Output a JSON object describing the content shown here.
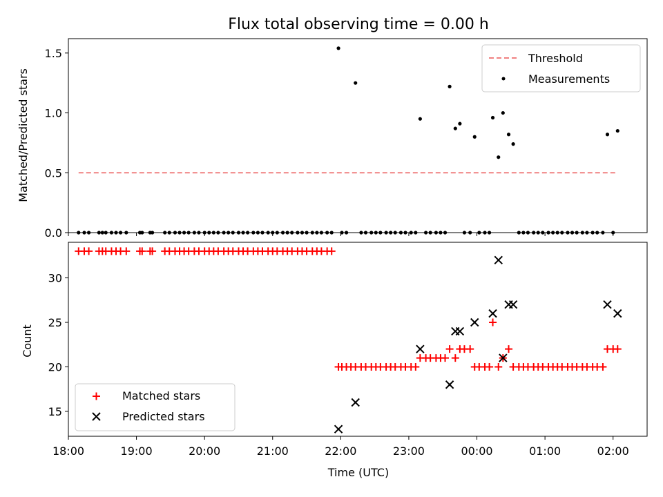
{
  "chart_data": [
    {
      "type": "scatter",
      "title": "Flux total observing time = 0.00 h",
      "xlabel": "",
      "ylabel": "Matched/Predicted stars",
      "xlim": [
        "18:00",
        "02:30"
      ],
      "ylim": [
        0,
        1.62
      ],
      "yticks": [
        0.0,
        0.5,
        1.0,
        1.5
      ],
      "ytick_labels": [
        "0.0",
        "0.5",
        "1.0",
        "1.5"
      ],
      "legend": {
        "location": "top-right",
        "entries": [
          "Threshold",
          "Measurements"
        ]
      },
      "series": [
        {
          "name": "Threshold",
          "kind": "dashed-line",
          "color": "#f08080",
          "points": [
            [
              "18:09",
              0.5
            ],
            [
              "02:02",
              0.5
            ]
          ]
        },
        {
          "name": "Measurements",
          "kind": "dot",
          "color": "#000000",
          "points": [
            [
              "18:09",
              0
            ],
            [
              "18:14",
              0
            ],
            [
              "18:18",
              0
            ],
            [
              "18:27",
              0
            ],
            [
              "18:30",
              0
            ],
            [
              "18:33",
              0
            ],
            [
              "18:38",
              0
            ],
            [
              "18:42",
              0
            ],
            [
              "18:46",
              0
            ],
            [
              "18:51",
              0
            ],
            [
              "19:03",
              0
            ],
            [
              "19:05",
              0
            ],
            [
              "19:12",
              0
            ],
            [
              "19:14",
              0
            ],
            [
              "19:25",
              0
            ],
            [
              "19:29",
              0
            ],
            [
              "19:34",
              0
            ],
            [
              "19:38",
              0
            ],
            [
              "19:42",
              0
            ],
            [
              "19:46",
              0
            ],
            [
              "19:51",
              0
            ],
            [
              "19:55",
              0
            ],
            [
              "20:00",
              0
            ],
            [
              "20:04",
              0
            ],
            [
              "20:08",
              0
            ],
            [
              "20:12",
              0
            ],
            [
              "20:17",
              0
            ],
            [
              "20:21",
              0
            ],
            [
              "20:25",
              0
            ],
            [
              "20:30",
              0
            ],
            [
              "20:34",
              0
            ],
            [
              "20:38",
              0
            ],
            [
              "20:43",
              0
            ],
            [
              "20:47",
              0
            ],
            [
              "20:51",
              0
            ],
            [
              "20:56",
              0
            ],
            [
              "21:00",
              0
            ],
            [
              "21:04",
              0
            ],
            [
              "21:09",
              0
            ],
            [
              "21:13",
              0
            ],
            [
              "21:17",
              0
            ],
            [
              "21:22",
              0
            ],
            [
              "21:26",
              0
            ],
            [
              "21:30",
              0
            ],
            [
              "21:35",
              0
            ],
            [
              "21:39",
              0
            ],
            [
              "21:43",
              0
            ],
            [
              "21:48",
              0
            ],
            [
              "21:52",
              0
            ],
            [
              "21:58",
              1.54
            ],
            [
              "22:01",
              0
            ],
            [
              "22:05",
              0
            ],
            [
              "22:13",
              1.25
            ],
            [
              "22:18",
              0
            ],
            [
              "22:22",
              0
            ],
            [
              "22:27",
              0
            ],
            [
              "22:31",
              0
            ],
            [
              "22:35",
              0
            ],
            [
              "22:40",
              0
            ],
            [
              "22:44",
              0
            ],
            [
              "22:48",
              0
            ],
            [
              "22:53",
              0
            ],
            [
              "22:57",
              0
            ],
            [
              "23:02",
              0
            ],
            [
              "23:06",
              0
            ],
            [
              "23:10",
              0.95
            ],
            [
              "23:15",
              0
            ],
            [
              "23:19",
              0
            ],
            [
              "23:24",
              0
            ],
            [
              "23:28",
              0
            ],
            [
              "23:32",
              0
            ],
            [
              "23:36",
              1.22
            ],
            [
              "23:41",
              0.87
            ],
            [
              "23:45",
              0.91
            ],
            [
              "23:49",
              0
            ],
            [
              "23:54",
              0
            ],
            [
              "23:58",
              0.8
            ],
            [
              "00:02",
              0
            ],
            [
              "00:07",
              0
            ],
            [
              "00:11",
              0
            ],
            [
              "00:14",
              0.96
            ],
            [
              "00:19",
              0.63
            ],
            [
              "00:23",
              1.0
            ],
            [
              "00:28",
              0.82
            ],
            [
              "00:32",
              0.74
            ],
            [
              "00:37",
              0
            ],
            [
              "00:41",
              0
            ],
            [
              "00:45",
              0
            ],
            [
              "00:50",
              0
            ],
            [
              "00:54",
              0
            ],
            [
              "00:58",
              0
            ],
            [
              "01:03",
              0
            ],
            [
              "01:07",
              0
            ],
            [
              "01:11",
              0
            ],
            [
              "01:15",
              0
            ],
            [
              "01:20",
              0
            ],
            [
              "01:24",
              0
            ],
            [
              "01:28",
              0
            ],
            [
              "01:33",
              0
            ],
            [
              "01:37",
              0
            ],
            [
              "01:42",
              0
            ],
            [
              "01:46",
              0
            ],
            [
              "01:51",
              0
            ],
            [
              "01:55",
              0.82
            ],
            [
              "02:00",
              0
            ],
            [
              "02:04",
              0.85
            ]
          ]
        }
      ]
    },
    {
      "type": "scatter",
      "title": "",
      "xlabel": "Time (UTC)",
      "ylabel": "Count",
      "xlim": [
        "18:00",
        "02:30"
      ],
      "ylim": [
        12.2,
        34.0
      ],
      "yticks": [
        15,
        20,
        25,
        30
      ],
      "ytick_labels": [
        "15",
        "20",
        "25",
        "30"
      ],
      "xticks": [
        "18:00",
        "19:00",
        "20:00",
        "21:00",
        "22:00",
        "23:00",
        "00:00",
        "01:00",
        "02:00"
      ],
      "legend": {
        "location": "bottom-left",
        "entries": [
          "Matched stars",
          "Predicted stars"
        ]
      },
      "series": [
        {
          "name": "Matched stars",
          "marker": "+",
          "color": "#ff0000",
          "points": [
            [
              "18:09",
              33
            ],
            [
              "18:14",
              33
            ],
            [
              "18:18",
              33
            ],
            [
              "18:27",
              33
            ],
            [
              "18:30",
              33
            ],
            [
              "18:33",
              33
            ],
            [
              "18:38",
              33
            ],
            [
              "18:42",
              33
            ],
            [
              "18:46",
              33
            ],
            [
              "18:51",
              33
            ],
            [
              "19:03",
              33
            ],
            [
              "19:05",
              33
            ],
            [
              "19:12",
              33
            ],
            [
              "19:14",
              33
            ],
            [
              "19:25",
              33
            ],
            [
              "19:29",
              33
            ],
            [
              "19:34",
              33
            ],
            [
              "19:38",
              33
            ],
            [
              "19:42",
              33
            ],
            [
              "19:46",
              33
            ],
            [
              "19:51",
              33
            ],
            [
              "19:55",
              33
            ],
            [
              "20:00",
              33
            ],
            [
              "20:04",
              33
            ],
            [
              "20:08",
              33
            ],
            [
              "20:12",
              33
            ],
            [
              "20:17",
              33
            ],
            [
              "20:21",
              33
            ],
            [
              "20:25",
              33
            ],
            [
              "20:30",
              33
            ],
            [
              "20:34",
              33
            ],
            [
              "20:38",
              33
            ],
            [
              "20:43",
              33
            ],
            [
              "20:47",
              33
            ],
            [
              "20:51",
              33
            ],
            [
              "20:56",
              33
            ],
            [
              "21:00",
              33
            ],
            [
              "21:04",
              33
            ],
            [
              "21:09",
              33
            ],
            [
              "21:13",
              33
            ],
            [
              "21:17",
              33
            ],
            [
              "21:22",
              33
            ],
            [
              "21:26",
              33
            ],
            [
              "21:30",
              33
            ],
            [
              "21:35",
              33
            ],
            [
              "21:39",
              33
            ],
            [
              "21:43",
              33
            ],
            [
              "21:48",
              33
            ],
            [
              "21:52",
              33
            ],
            [
              "21:58",
              20
            ],
            [
              "22:01",
              20
            ],
            [
              "22:05",
              20
            ],
            [
              "22:09",
              20
            ],
            [
              "22:13",
              20
            ],
            [
              "22:18",
              20
            ],
            [
              "22:22",
              20
            ],
            [
              "22:27",
              20
            ],
            [
              "22:31",
              20
            ],
            [
              "22:35",
              20
            ],
            [
              "22:40",
              20
            ],
            [
              "22:44",
              20
            ],
            [
              "22:48",
              20
            ],
            [
              "22:53",
              20
            ],
            [
              "22:57",
              20
            ],
            [
              "23:02",
              20
            ],
            [
              "23:06",
              20
            ],
            [
              "23:10",
              21
            ],
            [
              "23:15",
              21
            ],
            [
              "23:19",
              21
            ],
            [
              "23:24",
              21
            ],
            [
              "23:28",
              21
            ],
            [
              "23:32",
              21
            ],
            [
              "23:36",
              22
            ],
            [
              "23:41",
              21
            ],
            [
              "23:45",
              22
            ],
            [
              "23:49",
              22
            ],
            [
              "23:54",
              22
            ],
            [
              "23:58",
              20
            ],
            [
              "00:02",
              20
            ],
            [
              "00:07",
              20
            ],
            [
              "00:11",
              20
            ],
            [
              "00:14",
              25
            ],
            [
              "00:19",
              20
            ],
            [
              "00:23",
              21
            ],
            [
              "00:28",
              22
            ],
            [
              "00:32",
              20
            ],
            [
              "00:37",
              20
            ],
            [
              "00:41",
              20
            ],
            [
              "00:45",
              20
            ],
            [
              "00:50",
              20
            ],
            [
              "00:54",
              20
            ],
            [
              "00:58",
              20
            ],
            [
              "01:03",
              20
            ],
            [
              "01:07",
              20
            ],
            [
              "01:11",
              20
            ],
            [
              "01:15",
              20
            ],
            [
              "01:20",
              20
            ],
            [
              "01:24",
              20
            ],
            [
              "01:28",
              20
            ],
            [
              "01:33",
              20
            ],
            [
              "01:37",
              20
            ],
            [
              "01:42",
              20
            ],
            [
              "01:46",
              20
            ],
            [
              "01:51",
              20
            ],
            [
              "01:55",
              22
            ],
            [
              "02:00",
              22
            ],
            [
              "02:04",
              22
            ]
          ]
        },
        {
          "name": "Predicted stars",
          "marker": "x",
          "color": "#000000",
          "points": [
            [
              "21:58",
              13
            ],
            [
              "22:13",
              16
            ],
            [
              "23:10",
              22
            ],
            [
              "23:36",
              18
            ],
            [
              "23:41",
              24
            ],
            [
              "23:45",
              24
            ],
            [
              "23:58",
              25
            ],
            [
              "00:14",
              26
            ],
            [
              "00:19",
              32
            ],
            [
              "00:23",
              21
            ],
            [
              "00:28",
              27
            ],
            [
              "00:32",
              27
            ],
            [
              "01:55",
              27
            ],
            [
              "02:04",
              26
            ]
          ]
        }
      ]
    }
  ]
}
